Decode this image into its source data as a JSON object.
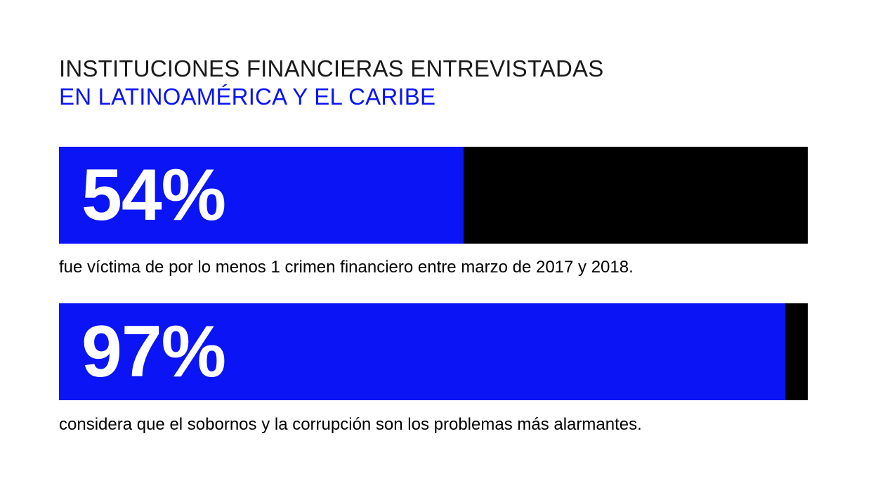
{
  "title": {
    "line1": "INSTITUCIONES FINANCIERAS ENTREVISTADAS",
    "line2": "EN LATINOAMÉRICA Y EL CARIBE"
  },
  "colors": {
    "title_primary": "#1a1a1a",
    "title_accent": "#0a14f5",
    "bar_fill": "#0a14f5",
    "bar_track": "#000000",
    "value_text": "#ffffff"
  },
  "chart_data": {
    "type": "bar",
    "orientation": "horizontal",
    "title": "INSTITUCIONES FINANCIERAS ENTREVISTADAS EN LATINOAMÉRICA Y EL CARIBE",
    "xlim": [
      0,
      100
    ],
    "unit": "%",
    "items": [
      {
        "value": 54,
        "label": "54%",
        "caption": "fue víctima de por lo menos 1 crimen financiero entre marzo de 2017 y 2018."
      },
      {
        "value": 97,
        "label": "97%",
        "caption": "considera que el sobornos y la corrupción son los problemas más alarmantes."
      }
    ]
  }
}
